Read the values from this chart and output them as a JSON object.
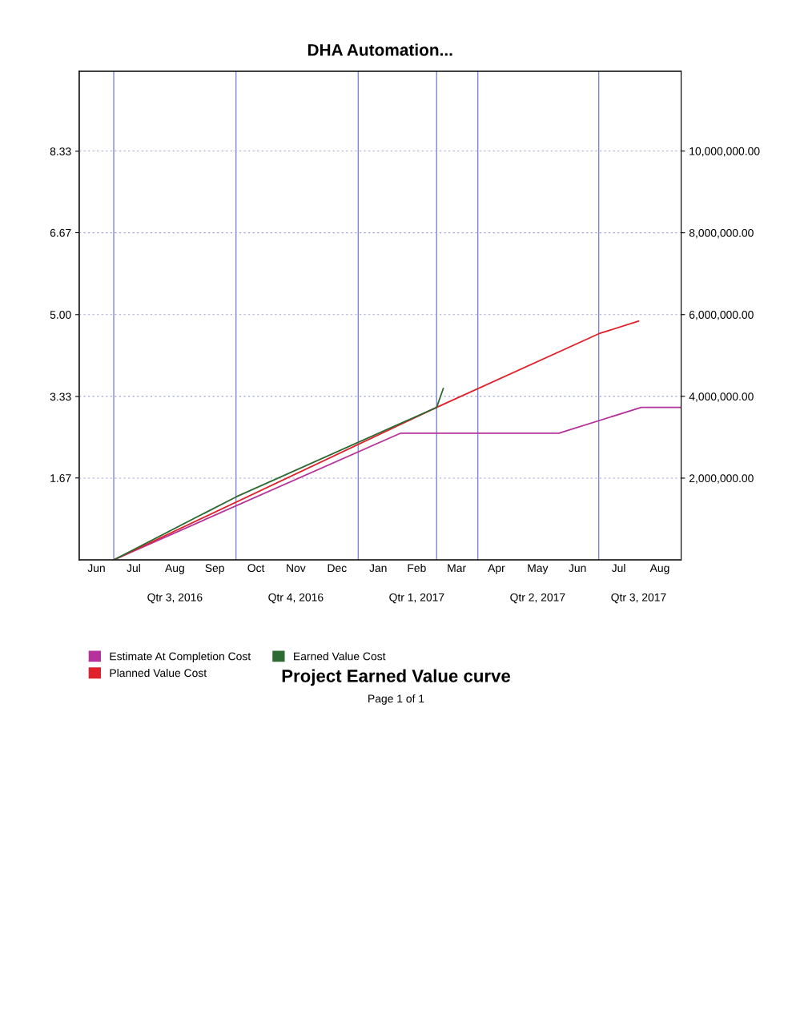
{
  "chart_data": {
    "type": "line",
    "title": "DHA Automation...",
    "subtitle": "Project Earned Value curve",
    "annotations": [
      "Page 1 of 1"
    ],
    "xlim": [
      "2016-06-05",
      "2017-09-01"
    ],
    "xticks": [
      {
        "value": "2016-06-18",
        "label": "Jun"
      },
      {
        "value": "2016-07-16",
        "label": "Jul"
      },
      {
        "value": "2016-08-16",
        "label": "Aug"
      },
      {
        "value": "2016-09-15",
        "label": "Sep"
      },
      {
        "value": "2016-10-16",
        "label": "Oct"
      },
      {
        "value": "2016-11-15",
        "label": "Nov"
      },
      {
        "value": "2016-12-16",
        "label": "Dec"
      },
      {
        "value": "2017-01-16",
        "label": "Jan"
      },
      {
        "value": "2017-02-14",
        "label": "Feb"
      },
      {
        "value": "2017-03-16",
        "label": "Mar"
      },
      {
        "value": "2017-04-15",
        "label": "Apr"
      },
      {
        "value": "2017-05-16",
        "label": "May"
      },
      {
        "value": "2017-06-15",
        "label": "Jun"
      },
      {
        "value": "2017-07-16",
        "label": "Jul"
      },
      {
        "value": "2017-08-16",
        "label": "Aug"
      }
    ],
    "ylim": [
      0,
      9.96
    ],
    "yticks": [
      {
        "value": 1.67,
        "label": "1.67"
      },
      {
        "value": 3.33,
        "label": "3.33"
      },
      {
        "value": 5.0,
        "label": "5.00"
      },
      {
        "value": 6.67,
        "label": "6.67"
      },
      {
        "value": 8.33,
        "label": "8.33"
      }
    ],
    "y2lim": [
      0,
      11950000
    ],
    "y2ticks": [
      {
        "value": 2000000,
        "label": "2,000,000.00"
      },
      {
        "value": 4000000,
        "label": "4,000,000.00"
      },
      {
        "value": 6000000,
        "label": "6,000,000.00"
      },
      {
        "value": 8000000,
        "label": "8,000,000.00"
      },
      {
        "value": 10000000,
        "label": "10,000,000.00"
      }
    ],
    "grid": "y",
    "legend": "bottom left",
    "marker": "none",
    "line_style": "solid",
    "series": [
      {
        "name": "Estimate At Completion Cost",
        "color": "#b5319b",
        "axis": "y2",
        "x": [
          "2016-07-01",
          "2017-02-02",
          "2017-06-01",
          "2017-08-02",
          "2017-09-01"
        ],
        "values": [
          0,
          3100000,
          3100000,
          3730000,
          3730000
        ]
      },
      {
        "name": "Planned Value Cost",
        "color": "#e0202a",
        "axis": "y2",
        "x": [
          "2016-07-01",
          "2017-03-01",
          "2017-07-01",
          "2017-07-31"
        ],
        "values": [
          0,
          3730000,
          5530000,
          5840000
        ]
      },
      {
        "name": "Earned Value Cost",
        "color": "#2e6b33",
        "axis": "y2",
        "x": [
          "2016-07-01",
          "2016-10-01",
          "2017-03-01",
          "2017-03-06"
        ],
        "values": [
          0,
          1540000,
          3730000,
          4190000
        ]
      }
    ],
    "x2lim": [
      "2016-06-05",
      "2017-09-01"
    ],
    "x2ticks": [
      {
        "value": "2016-08-16",
        "label": "Qtr 3, 2016"
      },
      {
        "value": "2016-11-15",
        "label": "Qtr 4, 2016"
      },
      {
        "value": "2017-02-14",
        "label": "Qtr 1, 2017"
      },
      {
        "value": "2017-05-16",
        "label": "Qtr 2, 2017"
      },
      {
        "value": "2017-07-31",
        "label": "Qtr 3, 2017"
      }
    ],
    "ref_lines": [
      {
        "axis": "x",
        "value": "2016-07-01",
        "color": "#7f86d6"
      },
      {
        "axis": "x",
        "value": "2016-10-01",
        "color": "#7f86d6"
      },
      {
        "axis": "x",
        "value": "2017-01-01",
        "color": "#7f86d6"
      },
      {
        "axis": "x",
        "value": "2017-03-01",
        "color": "#7f86d6"
      },
      {
        "axis": "x",
        "value": "2017-04-01",
        "color": "#7f86d6"
      },
      {
        "axis": "x",
        "value": "2017-07-01",
        "color": "#7f86d6"
      }
    ]
  }
}
